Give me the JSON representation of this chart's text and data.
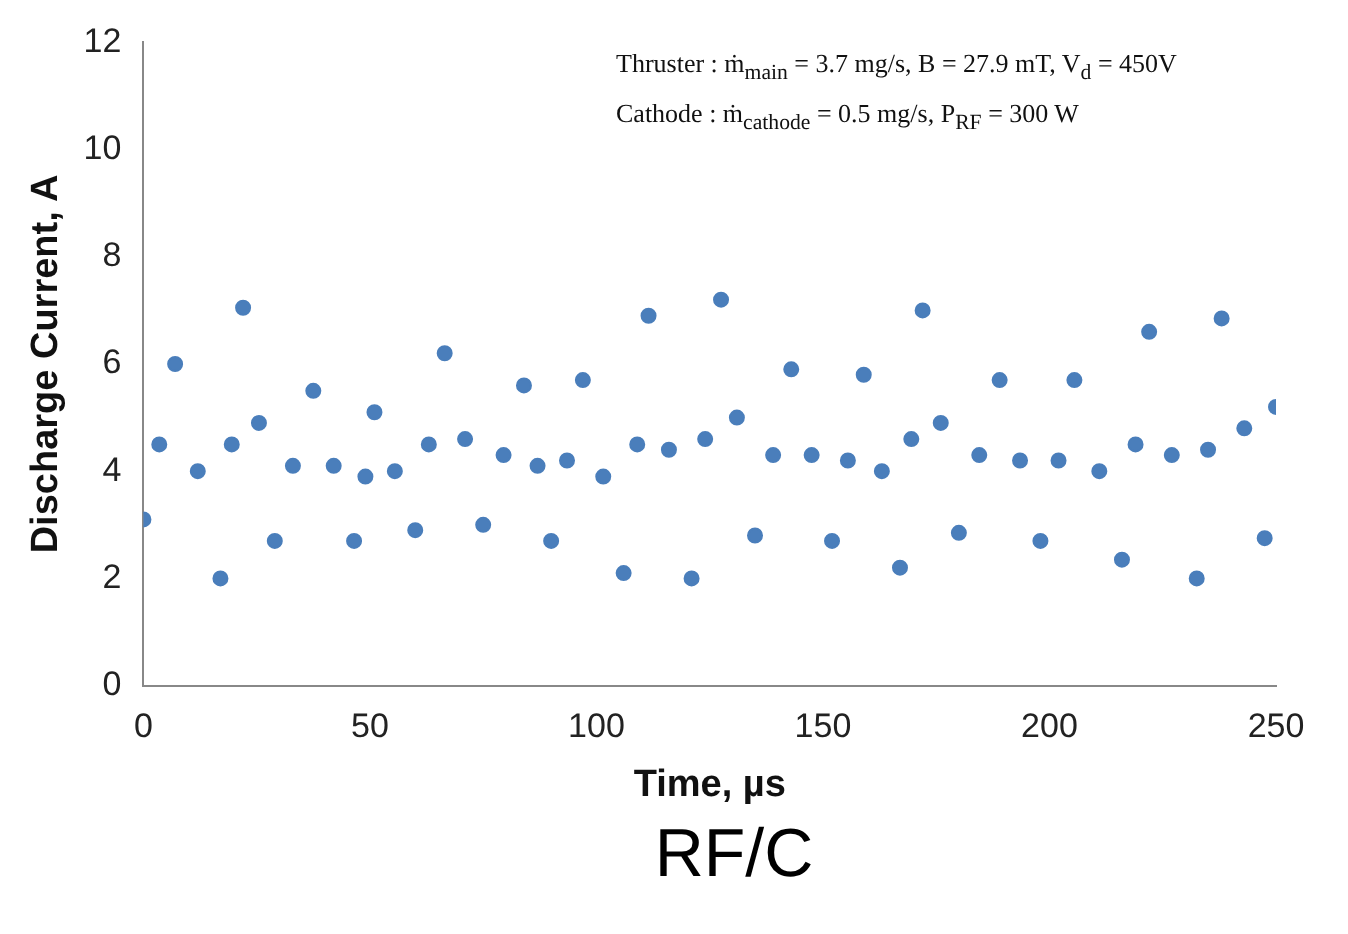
{
  "chart_data": {
    "type": "scatter",
    "xlabel": "Time, µs",
    "ylabel": "Discharge Current, A",
    "annotations": [
      "Thruster : ṁ$_{main}$ = 3.7 mg/s, B = 27.9 mT, V$_{d}$ = 450V",
      "Cathode : ṁ$_{cathode}$ = 0.5 mg/s, P$_{RF}$ = 300 W",
      "RF/C"
    ],
    "x": [
      0,
      3.5,
      7,
      12,
      17,
      19.5,
      22,
      25.5,
      29,
      33,
      37.5,
      42,
      46.5,
      49,
      51,
      55.5,
      60,
      63,
      66.5,
      71,
      75,
      79.5,
      84,
      87,
      90,
      93.5,
      97,
      101.5,
      106,
      109,
      111.5,
      116,
      121,
      124,
      127.5,
      131,
      135,
      139,
      143,
      147.5,
      152,
      155.5,
      159,
      163,
      167,
      169.5,
      172,
      176,
      180,
      184.5,
      189,
      193.5,
      198,
      202,
      205.5,
      211,
      216,
      219,
      222,
      227,
      232.5,
      235,
      238,
      243,
      247.5,
      250
    ],
    "series": [
      {
        "color": "#4a7ebb",
        "values": [
          3.1,
          4.5,
          6.0,
          4.0,
          2.0,
          4.5,
          7.05,
          4.9,
          2.7,
          4.1,
          5.5,
          4.1,
          2.7,
          3.9,
          5.1,
          4.0,
          2.9,
          4.5,
          6.2,
          4.6,
          3.0,
          4.3,
          5.6,
          4.1,
          2.7,
          4.2,
          5.7,
          3.9,
          2.1,
          4.5,
          6.9,
          4.4,
          2.0,
          4.6,
          7.2,
          5.0,
          2.8,
          4.3,
          5.9,
          4.3,
          2.7,
          4.2,
          5.8,
          4.0,
          2.2,
          4.6,
          7.0,
          4.9,
          2.85,
          4.3,
          5.7,
          4.2,
          2.7,
          4.2,
          5.7,
          4.0,
          2.35,
          4.5,
          6.6,
          4.3,
          2.0,
          4.4,
          6.85,
          4.8,
          2.75,
          5.2
        ]
      }
    ],
    "xlim": [
      0,
      250
    ],
    "xticks": [
      0,
      50,
      100,
      150,
      200,
      250
    ],
    "ylim": [
      0,
      12
    ],
    "yticks": [
      0,
      2,
      4,
      6,
      8,
      10,
      12
    ],
    "marker": "circle",
    "grid": false,
    "legend": false
  }
}
